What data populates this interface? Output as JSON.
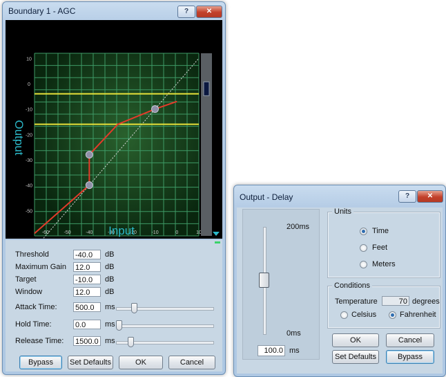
{
  "agc": {
    "title": "Boundary 1 - AGC",
    "help_label": "?",
    "close_label": "✕",
    "chart_data": {
      "type": "line",
      "xlabel": "Input",
      "ylabel": "Output",
      "x_ticks": [
        "-60",
        "-50",
        "-40",
        "-30",
        "-20",
        "-10",
        "0",
        "10"
      ],
      "y_ticks": [
        "10",
        "0",
        "-10",
        "-20",
        "-30",
        "-40",
        "-50"
      ],
      "xlim": [
        -65,
        10
      ],
      "ylim": [
        -60,
        12
      ],
      "yellow_lines": [
        -4,
        -16
      ],
      "curve": [
        [
          -65,
          -59
        ],
        [
          -40,
          -40
        ],
        [
          -40,
          -28
        ],
        [
          -27,
          -16
        ],
        [
          -10,
          -10
        ],
        [
          0,
          -7
        ]
      ],
      "handles": [
        [
          -40,
          -40
        ],
        [
          -40,
          -28
        ],
        [
          -10,
          -10
        ]
      ],
      "level_meter": -2
    },
    "fields": {
      "threshold_label": "Threshold",
      "threshold_value": "-40.0",
      "threshold_unit": "dB",
      "max_gain_label": "Maximum Gain",
      "max_gain_value": "12.0",
      "max_gain_unit": "dB",
      "target_label": "Target",
      "target_value": "-10.0",
      "target_unit": "dB",
      "window_label": "Window",
      "window_value": "12.0",
      "window_unit": "dB",
      "attack_label": "Attack Time:",
      "attack_value": "500.0",
      "attack_unit": "ms",
      "hold_label": "Hold Time:",
      "hold_value": "0.0",
      "hold_unit": "ms",
      "release_label": "Release Time:",
      "release_value": "1500.0",
      "release_unit": "ms"
    },
    "sliders": {
      "attack": 0.17,
      "hold": 0.0,
      "release": 0.13
    },
    "buttons": {
      "bypass": "Bypass",
      "set_defaults": "Set Defaults",
      "ok": "OK",
      "cancel": "Cancel"
    }
  },
  "delay": {
    "title": "Output - Delay",
    "help_label": "?",
    "close_label": "✕",
    "slider": {
      "max_label": "200ms",
      "min_label": "0ms",
      "value_fraction": 0.5
    },
    "value_input": "100.0",
    "value_unit": "ms",
    "units_group": {
      "title": "Units",
      "options": [
        "Time",
        "Feet",
        "Meters"
      ],
      "selected": "Time"
    },
    "conditions_group": {
      "title": "Conditions",
      "temperature_label": "Temperature",
      "temperature_value": "70",
      "temperature_unit": "degrees",
      "celsius_label": "Celsius",
      "fahrenheit_label": "Fahrenheit",
      "selected": "Fahrenheit"
    },
    "buttons": {
      "ok": "OK",
      "cancel": "Cancel",
      "set_defaults": "Set Defaults",
      "bypass": "Bypass"
    }
  }
}
